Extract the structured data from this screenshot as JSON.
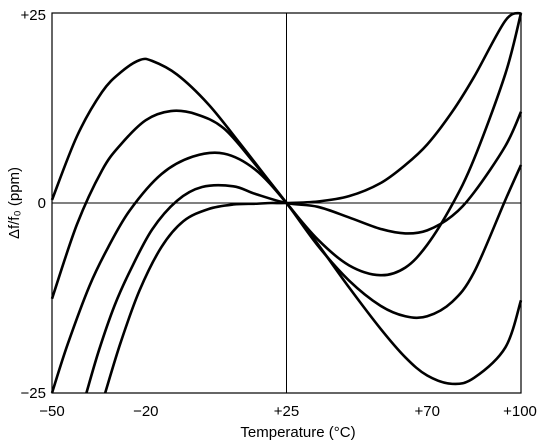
{
  "chart_data": {
    "type": "line",
    "xlabel": "Temperature (°C)",
    "ylabel": "Δf/f₀ (ppm)",
    "xlim": [
      -50,
      100
    ],
    "ylim": [
      -25,
      25
    ],
    "x_ticks": [
      {
        "value": -50,
        "label": "−50"
      },
      {
        "value": -20,
        "label": "−20"
      },
      {
        "value": 25,
        "label": "+25"
      },
      {
        "value": 70,
        "label": "+70"
      },
      {
        "value": 100,
        "label": "+100"
      }
    ],
    "y_ticks": [
      {
        "value": 25,
        "label": "+25"
      },
      {
        "value": 0,
        "label": "0"
      },
      {
        "value": -25,
        "label": "−25"
      }
    ],
    "reference_lines": {
      "x": 25,
      "y": 0
    },
    "grid": false,
    "line_color": "#000000",
    "series": [
      {
        "x": [
          -50,
          -42,
          -34,
          -28,
          -22,
          -18,
          -10,
          0,
          10,
          25,
          35,
          45,
          55,
          63,
          70,
          78,
          85,
          95,
          100
        ],
        "y": [
          0.4,
          8.8,
          14.6,
          17.2,
          18.8,
          18.7,
          16.9,
          13.0,
          7.9,
          0.0,
          -4.8,
          -8.2,
          -9.5,
          -8.5,
          -5.5,
          -0.2,
          5.8,
          17.0,
          25.0
        ]
      },
      {
        "x": [
          -50,
          -42,
          -34,
          -28,
          -20,
          -12,
          -4,
          5,
          15,
          25,
          35,
          45,
          55,
          63,
          70,
          78,
          85,
          95,
          100
        ],
        "y": [
          -12.6,
          -2.8,
          4.3,
          7.7,
          10.9,
          12.1,
          11.7,
          9.8,
          5.1,
          0.0,
          -5.6,
          -10.2,
          -13.5,
          -14.9,
          -14.9,
          -13.0,
          -9.1,
          0.4,
          5.0
        ]
      },
      {
        "x": [
          -50,
          -45,
          -38,
          -32,
          -25,
          -15,
          -5,
          5,
          15,
          25,
          35,
          45,
          55,
          63,
          70,
          78,
          85,
          95,
          100
        ],
        "y": [
          -25.0,
          -18.6,
          -10.9,
          -5.8,
          -0.9,
          3.8,
          6.1,
          6.5,
          4.4,
          0.0,
          -5.4,
          -11.1,
          -16.5,
          -20.3,
          -22.7,
          -23.8,
          -23.0,
          -19.0,
          -12.8
        ]
      },
      {
        "x": [
          -39,
          -35,
          -30,
          -25,
          -18,
          -10,
          -2,
          8,
          15,
          25,
          35,
          45,
          55,
          63,
          70,
          78,
          85,
          95,
          100
        ],
        "y": [
          -25.0,
          -19.4,
          -13.5,
          -8.9,
          -3.5,
          0.3,
          2.1,
          2.2,
          1.2,
          0.0,
          -0.5,
          -1.9,
          -3.4,
          -4.0,
          -3.6,
          -1.7,
          1.4,
          7.5,
          12.0
        ]
      },
      {
        "x": [
          -33,
          -28,
          -22,
          -15,
          -8,
          0,
          8,
          15,
          20,
          25,
          35,
          45,
          55,
          63,
          70,
          78,
          85,
          95,
          100
        ],
        "y": [
          -25.0,
          -18.3,
          -11.5,
          -5.8,
          -2.4,
          -0.8,
          -0.2,
          -0.1,
          0.0,
          0.0,
          0.2,
          0.9,
          2.6,
          5.0,
          7.7,
          12.0,
          16.6,
          24.0,
          25.0
        ]
      }
    ]
  }
}
